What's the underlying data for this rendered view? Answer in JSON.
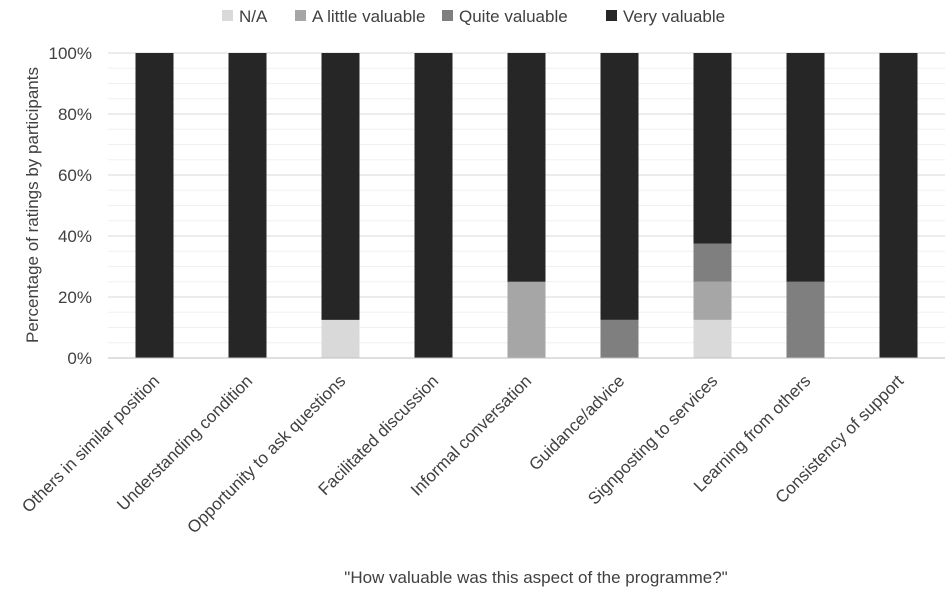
{
  "chart_data": {
    "type": "bar",
    "stacked": true,
    "percent": true,
    "title": "",
    "xlabel": "\"How valuable was this aspect of the programme?\"",
    "ylabel": "Percentage of ratings by participants",
    "ylim": [
      0,
      100
    ],
    "yticks": [
      "0%",
      "20%",
      "40%",
      "60%",
      "80%",
      "100%"
    ],
    "grid": true,
    "legend_position": "top",
    "categories": [
      "Others in similar position",
      "Understanding condition",
      "Opportunity to ask questions",
      "Facilitated discussion",
      "Informal conversation",
      "Guidance/advice",
      "Signposting to services",
      "Learning from others",
      "Consistency of support"
    ],
    "series": [
      {
        "name": "N/A",
        "color": "#d9d9d9",
        "values": [
          0,
          0,
          12.5,
          0,
          0,
          0,
          12.5,
          0,
          0
        ]
      },
      {
        "name": "A little valuable",
        "color": "#a6a6a6",
        "values": [
          0,
          0,
          0,
          0,
          25,
          0,
          12.5,
          0,
          0
        ]
      },
      {
        "name": "Quite valuable",
        "color": "#7f7f7f",
        "values": [
          0,
          0,
          0,
          0,
          0,
          12.5,
          12.5,
          25,
          0
        ]
      },
      {
        "name": "Very valuable",
        "color": "#262626",
        "values": [
          100,
          100,
          87.5,
          100,
          75,
          87.5,
          62.5,
          75,
          100
        ]
      }
    ]
  }
}
